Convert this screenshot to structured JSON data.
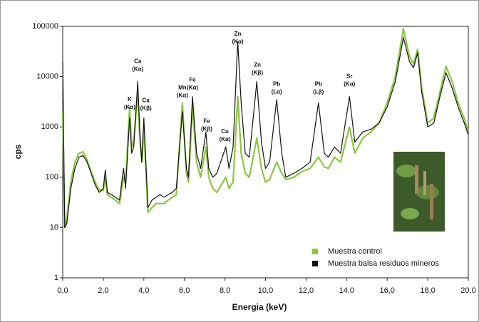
{
  "chart_data": {
    "type": "line",
    "y_label": "cps",
    "x_label": "Energia (keV)",
    "log_scale": true,
    "legend": "lower right",
    "xlim": [
      0,
      20
    ],
    "ylim": [
      1,
      100000
    ],
    "xticks": [
      {
        "value": 0,
        "label": "0,0"
      },
      {
        "value": 2,
        "label": "2,0"
      },
      {
        "value": 4,
        "label": "4,0"
      },
      {
        "value": 6,
        "label": "6,0"
      },
      {
        "value": 8,
        "label": "8,0"
      },
      {
        "value": 10,
        "label": "10,0"
      },
      {
        "value": 12,
        "label": "12,0"
      },
      {
        "value": 14,
        "label": "14,0"
      },
      {
        "value": 16,
        "label": "16,0"
      },
      {
        "value": 18,
        "label": "18,0"
      },
      {
        "value": 20,
        "label": "20,0"
      }
    ],
    "yticks": [
      1,
      10,
      100,
      1000,
      10000,
      100000
    ],
    "x": [
      0.0,
      0.1,
      0.2,
      0.4,
      0.6,
      0.8,
      1.0,
      1.2,
      1.4,
      1.6,
      1.8,
      2.0,
      2.1,
      2.2,
      2.4,
      2.6,
      2.8,
      3.0,
      3.1,
      3.3,
      3.4,
      3.5,
      3.7,
      3.8,
      3.9,
      4.0,
      4.1,
      4.2,
      4.4,
      4.6,
      4.8,
      5.0,
      5.2,
      5.4,
      5.6,
      5.9,
      6.1,
      6.2,
      6.4,
      6.6,
      6.8,
      7.06,
      7.2,
      7.4,
      7.6,
      8.04,
      8.2,
      8.4,
      8.63,
      8.8,
      9.0,
      9.2,
      9.57,
      9.8,
      10.0,
      10.2,
      10.55,
      10.8,
      11.0,
      11.4,
      11.8,
      12.2,
      12.61,
      12.9,
      13.1,
      13.4,
      13.7,
      14.14,
      14.4,
      14.8,
      15.2,
      15.6,
      16.0,
      16.4,
      16.8,
      17.1,
      17.3,
      17.5,
      17.7,
      18.0,
      18.3,
      18.6,
      18.9,
      19.2,
      19.5,
      19.8,
      20.0
    ],
    "series": [
      {
        "name": "Muestra control",
        "color": "#8cc63f",
        "values": [
          2000,
          10,
          15,
          80,
          200,
          300,
          320,
          220,
          130,
          80,
          55,
          55,
          100,
          45,
          40,
          35,
          30,
          100,
          80,
          2500,
          400,
          500,
          5000,
          600,
          200,
          1000,
          150,
          20,
          25,
          30,
          30,
          30,
          35,
          40,
          45,
          3000,
          120,
          80,
          2500,
          200,
          100,
          400,
          100,
          60,
          50,
          100,
          60,
          80,
          4000,
          300,
          120,
          100,
          600,
          150,
          80,
          90,
          200,
          120,
          90,
          100,
          130,
          150,
          250,
          160,
          150,
          250,
          200,
          1000,
          300,
          600,
          800,
          1200,
          3000,
          10000,
          90000,
          25000,
          18000,
          35000,
          6000,
          1200,
          1500,
          5000,
          16000,
          8000,
          3000,
          1500,
          800
        ]
      },
      {
        "name": "Muestra balsa residuos mineros",
        "color": "#111111",
        "values": [
          20000,
          10,
          12,
          60,
          150,
          250,
          270,
          200,
          120,
          70,
          50,
          60,
          140,
          50,
          45,
          40,
          35,
          150,
          60,
          1500,
          300,
          400,
          8000,
          800,
          200,
          1500,
          200,
          25,
          35,
          40,
          45,
          40,
          45,
          50,
          60,
          2000,
          150,
          100,
          4000,
          300,
          150,
          800,
          150,
          100,
          120,
          400,
          150,
          400,
          50000,
          3000,
          300,
          250,
          8000,
          500,
          150,
          200,
          3500,
          300,
          100,
          120,
          150,
          200,
          3000,
          300,
          250,
          400,
          300,
          4000,
          500,
          800,
          900,
          1200,
          2500,
          8000,
          60000,
          20000,
          15000,
          30000,
          5000,
          1000,
          1200,
          4000,
          12000,
          6000,
          2500,
          1200,
          700
        ]
      }
    ],
    "annotations": [
      {
        "lines": [
          "K",
          "(Kα)"
        ],
        "x": 3.3,
        "y": 3500
      },
      {
        "lines": [
          "Ca",
          "(Kα)"
        ],
        "x": 3.7,
        "y": 20000
      },
      {
        "lines": [
          "Ca",
          "(Kβ)"
        ],
        "x": 4.1,
        "y": 3300
      },
      {
        "lines": [
          "Mn",
          "(Kα)"
        ],
        "x": 5.9,
        "y": 6000
      },
      {
        "lines": [
          "Fe",
          "(Kα)"
        ],
        "x": 6.4,
        "y": 8500
      },
      {
        "lines": [
          "Fe",
          "(Kβ)"
        ],
        "x": 7.1,
        "y": 1300
      },
      {
        "lines": [
          "Cu",
          "(Kα)"
        ],
        "x": 8.0,
        "y": 800
      },
      {
        "lines": [
          "Zn",
          "(Kα)"
        ],
        "x": 8.63,
        "y": 70000
      },
      {
        "lines": [
          "Zn",
          "(Kβ)"
        ],
        "x": 9.6,
        "y": 17000
      },
      {
        "lines": [
          "Pb",
          "(Lα)"
        ],
        "x": 10.55,
        "y": 7000
      },
      {
        "lines": [
          "Pb",
          "(Lβ)"
        ],
        "x": 12.61,
        "y": 7000
      },
      {
        "lines": [
          "Sr",
          "(Kα)"
        ],
        "x": 14.14,
        "y": 10000
      }
    ]
  }
}
